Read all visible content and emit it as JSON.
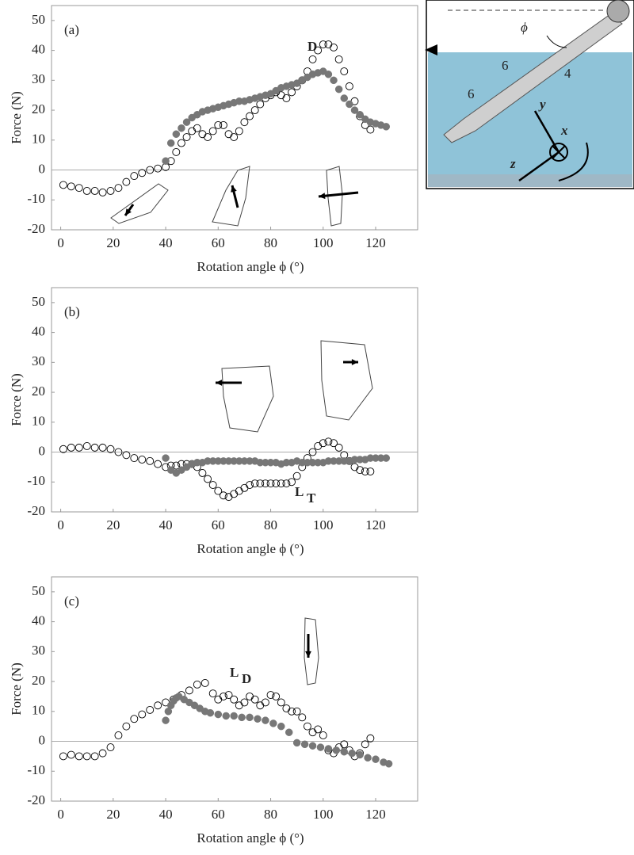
{
  "chart_data": [
    {
      "type": "scatter",
      "panel_label": "(a)",
      "annotation": {
        "text": "D"
      },
      "xlabel": "Rotation angle ϕ (°)",
      "ylabel": "Force (N)",
      "xlim": [
        -3.5,
        136
      ],
      "ylim": [
        -20,
        55
      ],
      "xticks": [
        0,
        20,
        40,
        60,
        80,
        100,
        120
      ],
      "yticks": [
        -20,
        -10,
        0,
        10,
        20,
        30,
        40,
        50
      ],
      "zero_line": true,
      "series": [
        {
          "style": "open",
          "color": "#000000",
          "x": [
            1,
            4,
            7,
            10,
            13,
            16,
            19,
            22,
            25,
            28,
            31,
            34,
            37,
            40,
            42,
            44,
            46,
            48,
            50,
            52,
            54,
            56,
            58,
            60,
            62,
            64,
            66,
            68,
            70,
            72,
            74,
            76,
            78,
            80,
            82,
            84,
            86,
            88,
            90,
            92,
            94,
            96,
            98,
            100,
            102,
            104,
            106,
            108,
            110,
            112,
            114,
            116,
            118
          ],
          "values": [
            -5,
            -5.5,
            -6,
            -7,
            -7,
            -7.5,
            -7,
            -6,
            -4,
            -2,
            -1,
            0,
            0.5,
            1,
            3,
            6,
            9,
            11,
            13,
            14,
            12,
            11,
            13,
            15,
            15,
            12,
            11,
            13,
            16,
            18,
            20,
            22,
            24,
            25,
            26,
            25,
            24,
            26,
            28,
            30,
            33,
            37,
            40,
            42,
            42,
            41,
            37,
            33,
            28,
            23,
            18,
            15,
            13.5
          ]
        },
        {
          "style": "filled",
          "color": "#777777",
          "x": [
            40,
            42,
            44,
            46,
            48,
            50,
            52,
            54,
            56,
            58,
            60,
            62,
            64,
            66,
            68,
            70,
            72,
            74,
            76,
            78,
            80,
            82,
            84,
            86,
            88,
            90,
            92,
            94,
            96,
            98,
            100,
            102,
            104,
            106,
            108,
            110,
            112,
            114,
            116,
            118,
            120,
            122,
            124
          ],
          "values": [
            3,
            9,
            12,
            14,
            16,
            17.5,
            18.5,
            19.5,
            20,
            20.5,
            21,
            21.5,
            22,
            22.5,
            23,
            23,
            23.5,
            24,
            24.5,
            25,
            25.5,
            26.5,
            27.5,
            28,
            28.5,
            29,
            30,
            31,
            32,
            32.5,
            33,
            32,
            30,
            27,
            24,
            22,
            20,
            18.5,
            17,
            16,
            15.5,
            15,
            14.5
          ]
        }
      ]
    },
    {
      "type": "scatter",
      "panel_label": "(b)",
      "annotation": {
        "text": "L",
        "sub": "T"
      },
      "xlabel": "Rotation angle ϕ (°)",
      "ylabel": "Force (N)",
      "xlim": [
        -3.5,
        136
      ],
      "ylim": [
        -20,
        55
      ],
      "xticks": [
        0,
        20,
        40,
        60,
        80,
        100,
        120
      ],
      "yticks": [
        -20,
        -10,
        0,
        10,
        20,
        30,
        40,
        50
      ],
      "zero_line": true,
      "series": [
        {
          "style": "open",
          "color": "#000000",
          "x": [
            1,
            4,
            7,
            10,
            13,
            16,
            19,
            22,
            25,
            28,
            31,
            34,
            37,
            40,
            42,
            44,
            46,
            48,
            50,
            52,
            54,
            56,
            58,
            60,
            62,
            64,
            66,
            68,
            70,
            72,
            74,
            76,
            78,
            80,
            82,
            84,
            86,
            88,
            90,
            92,
            94,
            96,
            98,
            100,
            102,
            104,
            106,
            108,
            110,
            112,
            114,
            116,
            118
          ],
          "values": [
            1,
            1.5,
            1.5,
            2,
            1.5,
            1.5,
            1,
            0,
            -1,
            -2,
            -2.5,
            -3,
            -4,
            -5,
            -4.5,
            -4.5,
            -4,
            -4,
            -4,
            -5,
            -7,
            -9,
            -11,
            -13,
            -14.5,
            -15,
            -14,
            -13,
            -12,
            -11,
            -10.5,
            -10.5,
            -10.5,
            -10.5,
            -10.5,
            -10.5,
            -10.5,
            -10,
            -8,
            -5,
            -2,
            0,
            2,
            3,
            3.5,
            3,
            1.5,
            -1,
            -3,
            -5,
            -6,
            -6.5,
            -6.5
          ]
        },
        {
          "style": "filled",
          "color": "#777777",
          "x": [
            40,
            42,
            44,
            46,
            48,
            50,
            52,
            54,
            56,
            58,
            60,
            62,
            64,
            66,
            68,
            70,
            72,
            74,
            76,
            78,
            80,
            82,
            84,
            86,
            88,
            90,
            92,
            94,
            96,
            98,
            100,
            102,
            104,
            106,
            108,
            110,
            112,
            114,
            116,
            118,
            120,
            122,
            124
          ],
          "values": [
            -2,
            -6,
            -7,
            -6,
            -5,
            -4,
            -3.5,
            -3.5,
            -3,
            -3,
            -3,
            -3,
            -3,
            -3,
            -3,
            -3,
            -3,
            -3,
            -3.5,
            -3.5,
            -3.5,
            -3.5,
            -4,
            -3.5,
            -3.5,
            -3,
            -3.5,
            -3.5,
            -3.5,
            -3.5,
            -3.5,
            -3,
            -3,
            -3,
            -3,
            -3,
            -2.5,
            -2.5,
            -2.5,
            -2,
            -2,
            -2,
            -2
          ]
        }
      ]
    },
    {
      "type": "scatter",
      "panel_label": "(c)",
      "annotation": {
        "text": "L",
        "sub": "D"
      },
      "xlabel": "Rotation angle ϕ (°)",
      "ylabel": "Force (N)",
      "xlim": [
        -3.5,
        136
      ],
      "ylim": [
        -20,
        55
      ],
      "xticks": [
        0,
        20,
        40,
        60,
        80,
        100,
        120
      ],
      "yticks": [
        -20,
        -10,
        0,
        10,
        20,
        30,
        40,
        50
      ],
      "zero_line": true,
      "series": [
        {
          "style": "open",
          "color": "#000000",
          "x": [
            1,
            4,
            7,
            10,
            13,
            16,
            19,
            22,
            25,
            28,
            31,
            34,
            37,
            40,
            43,
            46,
            49,
            52,
            55,
            58,
            60,
            62,
            64,
            66,
            68,
            70,
            72,
            74,
            76,
            78,
            80,
            82,
            84,
            86,
            88,
            90,
            92,
            94,
            96,
            98,
            100,
            102,
            104,
            106,
            108,
            110,
            112,
            114,
            116,
            118
          ],
          "values": [
            -5,
            -4.5,
            -5,
            -5,
            -5,
            -4,
            -2,
            2,
            5,
            7.5,
            9,
            10.5,
            12,
            13,
            14,
            15.5,
            17,
            19,
            19.5,
            16,
            14,
            15,
            15.5,
            14,
            12,
            13,
            15,
            14,
            12,
            13,
            15.5,
            15,
            13,
            11,
            10,
            10,
            8,
            5,
            3,
            4,
            2,
            -3,
            -4,
            -2,
            -1,
            -3,
            -5,
            -4,
            -1,
            1
          ]
        },
        {
          "style": "filled",
          "color": "#777777",
          "x": [
            40,
            41,
            42,
            43,
            44,
            45,
            47,
            49,
            51,
            53,
            55,
            57,
            60,
            63,
            66,
            69,
            72,
            75,
            78,
            81,
            84,
            87,
            90,
            93,
            96,
            99,
            102,
            105,
            108,
            111,
            114,
            117,
            120,
            123,
            125
          ],
          "values": [
            7,
            10,
            12,
            13.5,
            14.5,
            15,
            14,
            13,
            12,
            11,
            10,
            9.5,
            9,
            8.5,
            8.5,
            8,
            8,
            7.5,
            7,
            6,
            5,
            3,
            -0.5,
            -1,
            -1.5,
            -2,
            -2.5,
            -3,
            -3.5,
            -4,
            -4.5,
            -5.5,
            -6,
            -7,
            -7.5
          ]
        }
      ]
    }
  ],
  "inset": {
    "angle_symbol": "ϕ",
    "part_labels": [
      "6",
      "6",
      "4"
    ],
    "axes": [
      "y",
      "x",
      "z"
    ]
  }
}
